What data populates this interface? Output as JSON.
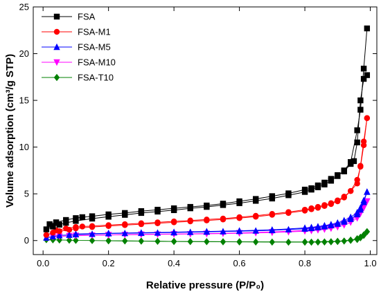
{
  "chart_data": {
    "type": "line",
    "xlabel": "Relative pressure (P/P₀)",
    "ylabel": "Volume adsorption (cm³/g STP)",
    "xlim": [
      -0.03,
      1.02
    ],
    "ylim": [
      -1.5,
      25
    ],
    "xticks": [
      0.0,
      0.2,
      0.4,
      0.6,
      0.8,
      1.0
    ],
    "yticks": [
      0,
      5,
      10,
      15,
      20,
      25
    ],
    "xtick_labels": [
      "0.0",
      "0.2",
      "0.4",
      "0.6",
      "0.8",
      "1.0"
    ],
    "ytick_labels": [
      "0",
      "5",
      "10",
      "15",
      "20",
      "25"
    ],
    "legend_position": "top-left",
    "series": [
      {
        "name": "FSA",
        "color": "#000000",
        "marker": "square",
        "adsorption": {
          "x": [
            0.01,
            0.03,
            0.05,
            0.07,
            0.1,
            0.15,
            0.2,
            0.25,
            0.3,
            0.35,
            0.4,
            0.45,
            0.5,
            0.55,
            0.6,
            0.65,
            0.7,
            0.75,
            0.8,
            0.82,
            0.84,
            0.86,
            0.88,
            0.9,
            0.92,
            0.94,
            0.96,
            0.97,
            0.98,
            0.99
          ],
          "y": [
            1.2,
            1.5,
            1.7,
            1.9,
            2.1,
            2.35,
            2.55,
            2.75,
            2.95,
            3.1,
            3.25,
            3.45,
            3.6,
            3.8,
            4.0,
            4.25,
            4.5,
            4.85,
            5.2,
            5.45,
            5.7,
            6.0,
            6.4,
            6.9,
            7.5,
            8.4,
            11.8,
            14.0,
            18.4,
            22.7
          ]
        },
        "desorption": {
          "x": [
            0.99,
            0.98,
            0.97,
            0.96,
            0.95,
            0.94,
            0.92,
            0.9,
            0.88,
            0.86,
            0.84,
            0.82,
            0.8,
            0.75,
            0.7,
            0.65,
            0.6,
            0.55,
            0.5,
            0.45,
            0.4,
            0.35,
            0.3,
            0.25,
            0.2,
            0.15,
            0.12,
            0.1,
            0.07,
            0.04,
            0.02
          ],
          "y": [
            17.7,
            17.3,
            15.0,
            10.5,
            8.5,
            8.2,
            7.4,
            7.0,
            6.6,
            6.2,
            5.9,
            5.6,
            5.45,
            5.05,
            4.75,
            4.45,
            4.2,
            3.95,
            3.75,
            3.6,
            3.45,
            3.3,
            3.15,
            2.95,
            2.8,
            2.6,
            2.5,
            2.4,
            2.2,
            1.95,
            1.75
          ]
        }
      },
      {
        "name": "FSA-M1",
        "color": "#ff0000",
        "marker": "circle",
        "adsorption": {
          "x": [
            0.01,
            0.03,
            0.05,
            0.08,
            0.1,
            0.15,
            0.2,
            0.25,
            0.3,
            0.35,
            0.4,
            0.45,
            0.5,
            0.55,
            0.6,
            0.65,
            0.7,
            0.75,
            0.8,
            0.82,
            0.84,
            0.86,
            0.88,
            0.9,
            0.92,
            0.94,
            0.96,
            0.97,
            0.98,
            0.99
          ],
          "y": [
            0.6,
            0.85,
            1.0,
            1.15,
            1.3,
            1.45,
            1.55,
            1.65,
            1.75,
            1.85,
            1.95,
            2.05,
            2.15,
            2.25,
            2.4,
            2.55,
            2.75,
            2.95,
            3.2,
            3.35,
            3.5,
            3.7,
            3.9,
            4.2,
            4.6,
            5.3,
            6.5,
            7.9,
            10.2,
            13.1
          ]
        },
        "desorption": {
          "x": [
            0.99,
            0.98,
            0.97,
            0.96,
            0.94,
            0.92,
            0.9,
            0.88,
            0.86,
            0.84,
            0.82,
            0.8,
            0.75,
            0.7,
            0.65,
            0.6,
            0.55,
            0.5,
            0.45,
            0.4,
            0.35,
            0.3,
            0.25,
            0.2,
            0.15,
            0.12,
            0.1,
            0.07,
            0.04
          ],
          "y": [
            13.1,
            10.6,
            8.0,
            6.1,
            5.3,
            4.7,
            4.3,
            4.0,
            3.8,
            3.6,
            3.45,
            3.3,
            3.05,
            2.85,
            2.65,
            2.5,
            2.35,
            2.25,
            2.15,
            2.05,
            1.95,
            1.85,
            1.75,
            1.65,
            1.55,
            1.5,
            1.45,
            1.3,
            1.1
          ]
        }
      },
      {
        "name": "FSA-M5",
        "color": "#0000ff",
        "marker": "triangle-up",
        "adsorption": {
          "x": [
            0.01,
            0.03,
            0.05,
            0.08,
            0.1,
            0.15,
            0.2,
            0.25,
            0.3,
            0.35,
            0.4,
            0.45,
            0.5,
            0.55,
            0.6,
            0.65,
            0.7,
            0.75,
            0.8,
            0.82,
            0.84,
            0.86,
            0.88,
            0.9,
            0.92,
            0.94,
            0.96,
            0.97,
            0.98,
            0.99
          ],
          "y": [
            0.3,
            0.45,
            0.55,
            0.6,
            0.65,
            0.7,
            0.75,
            0.78,
            0.8,
            0.83,
            0.86,
            0.9,
            0.93,
            0.97,
            1.0,
            1.05,
            1.1,
            1.18,
            1.25,
            1.32,
            1.4,
            1.5,
            1.62,
            1.78,
            2.0,
            2.3,
            2.8,
            3.3,
            4.1,
            5.2
          ]
        },
        "desorption": {
          "x": [
            0.99,
            0.98,
            0.97,
            0.96,
            0.94,
            0.92,
            0.9,
            0.88,
            0.86,
            0.84,
            0.82,
            0.8,
            0.7,
            0.6,
            0.5,
            0.4,
            0.3,
            0.2,
            0.1
          ],
          "y": [
            5.2,
            4.3,
            3.5,
            3.0,
            2.5,
            2.15,
            1.9,
            1.72,
            1.6,
            1.5,
            1.42,
            1.35,
            1.15,
            1.05,
            0.97,
            0.9,
            0.84,
            0.78,
            0.7
          ]
        }
      },
      {
        "name": "FSA-M10",
        "color": "#ff00ff",
        "marker": "triangle-down",
        "adsorption": {
          "x": [
            0.01,
            0.03,
            0.05,
            0.08,
            0.1,
            0.15,
            0.2,
            0.25,
            0.3,
            0.35,
            0.4,
            0.45,
            0.5,
            0.55,
            0.6,
            0.65,
            0.7,
            0.75,
            0.8,
            0.82,
            0.84,
            0.86,
            0.88,
            0.9,
            0.92,
            0.94,
            0.96,
            0.97,
            0.98,
            0.99
          ],
          "y": [
            0.3,
            0.4,
            0.45,
            0.5,
            0.52,
            0.56,
            0.6,
            0.62,
            0.64,
            0.66,
            0.68,
            0.7,
            0.72,
            0.75,
            0.78,
            0.82,
            0.86,
            0.92,
            1.0,
            1.05,
            1.12,
            1.2,
            1.3,
            1.45,
            1.65,
            1.95,
            2.4,
            2.9,
            3.5,
            4.2
          ]
        },
        "desorption": {
          "x": [
            0.99,
            0.98,
            0.97,
            0.96,
            0.94,
            0.92,
            0.9,
            0.88,
            0.86,
            0.84,
            0.82,
            0.8,
            0.7,
            0.6,
            0.5,
            0.4,
            0.3,
            0.2,
            0.1
          ],
          "y": [
            4.2,
            3.6,
            3.0,
            2.6,
            2.15,
            1.85,
            1.6,
            1.45,
            1.32,
            1.22,
            1.14,
            1.08,
            0.92,
            0.82,
            0.75,
            0.7,
            0.66,
            0.6,
            0.54
          ]
        }
      },
      {
        "name": "FSA-T10",
        "color": "#008000",
        "marker": "diamond",
        "adsorption": {
          "x": [
            0.01,
            0.03,
            0.05,
            0.08,
            0.1,
            0.15,
            0.2,
            0.25,
            0.3,
            0.35,
            0.4,
            0.45,
            0.5,
            0.55,
            0.6,
            0.65,
            0.7,
            0.75,
            0.8,
            0.82,
            0.84,
            0.86,
            0.88,
            0.9,
            0.92,
            0.94,
            0.96,
            0.97,
            0.98,
            0.99
          ],
          "y": [
            0.1,
            0.08,
            0.06,
            0.04,
            0.02,
            0.0,
            -0.02,
            -0.04,
            -0.06,
            -0.08,
            -0.1,
            -0.11,
            -0.12,
            -0.13,
            -0.14,
            -0.15,
            -0.16,
            -0.17,
            -0.17,
            -0.17,
            -0.16,
            -0.15,
            -0.13,
            -0.1,
            -0.05,
            0.02,
            0.12,
            0.3,
            0.55,
            0.95
          ]
        },
        "desorption": {
          "x": [
            0.99,
            0.98,
            0.97,
            0.96,
            0.94,
            0.9,
            0.8,
            0.6,
            0.4,
            0.2
          ],
          "y": [
            0.95,
            0.6,
            0.35,
            0.2,
            0.05,
            -0.08,
            -0.15,
            -0.13,
            -0.09,
            -0.02
          ]
        }
      }
    ]
  }
}
